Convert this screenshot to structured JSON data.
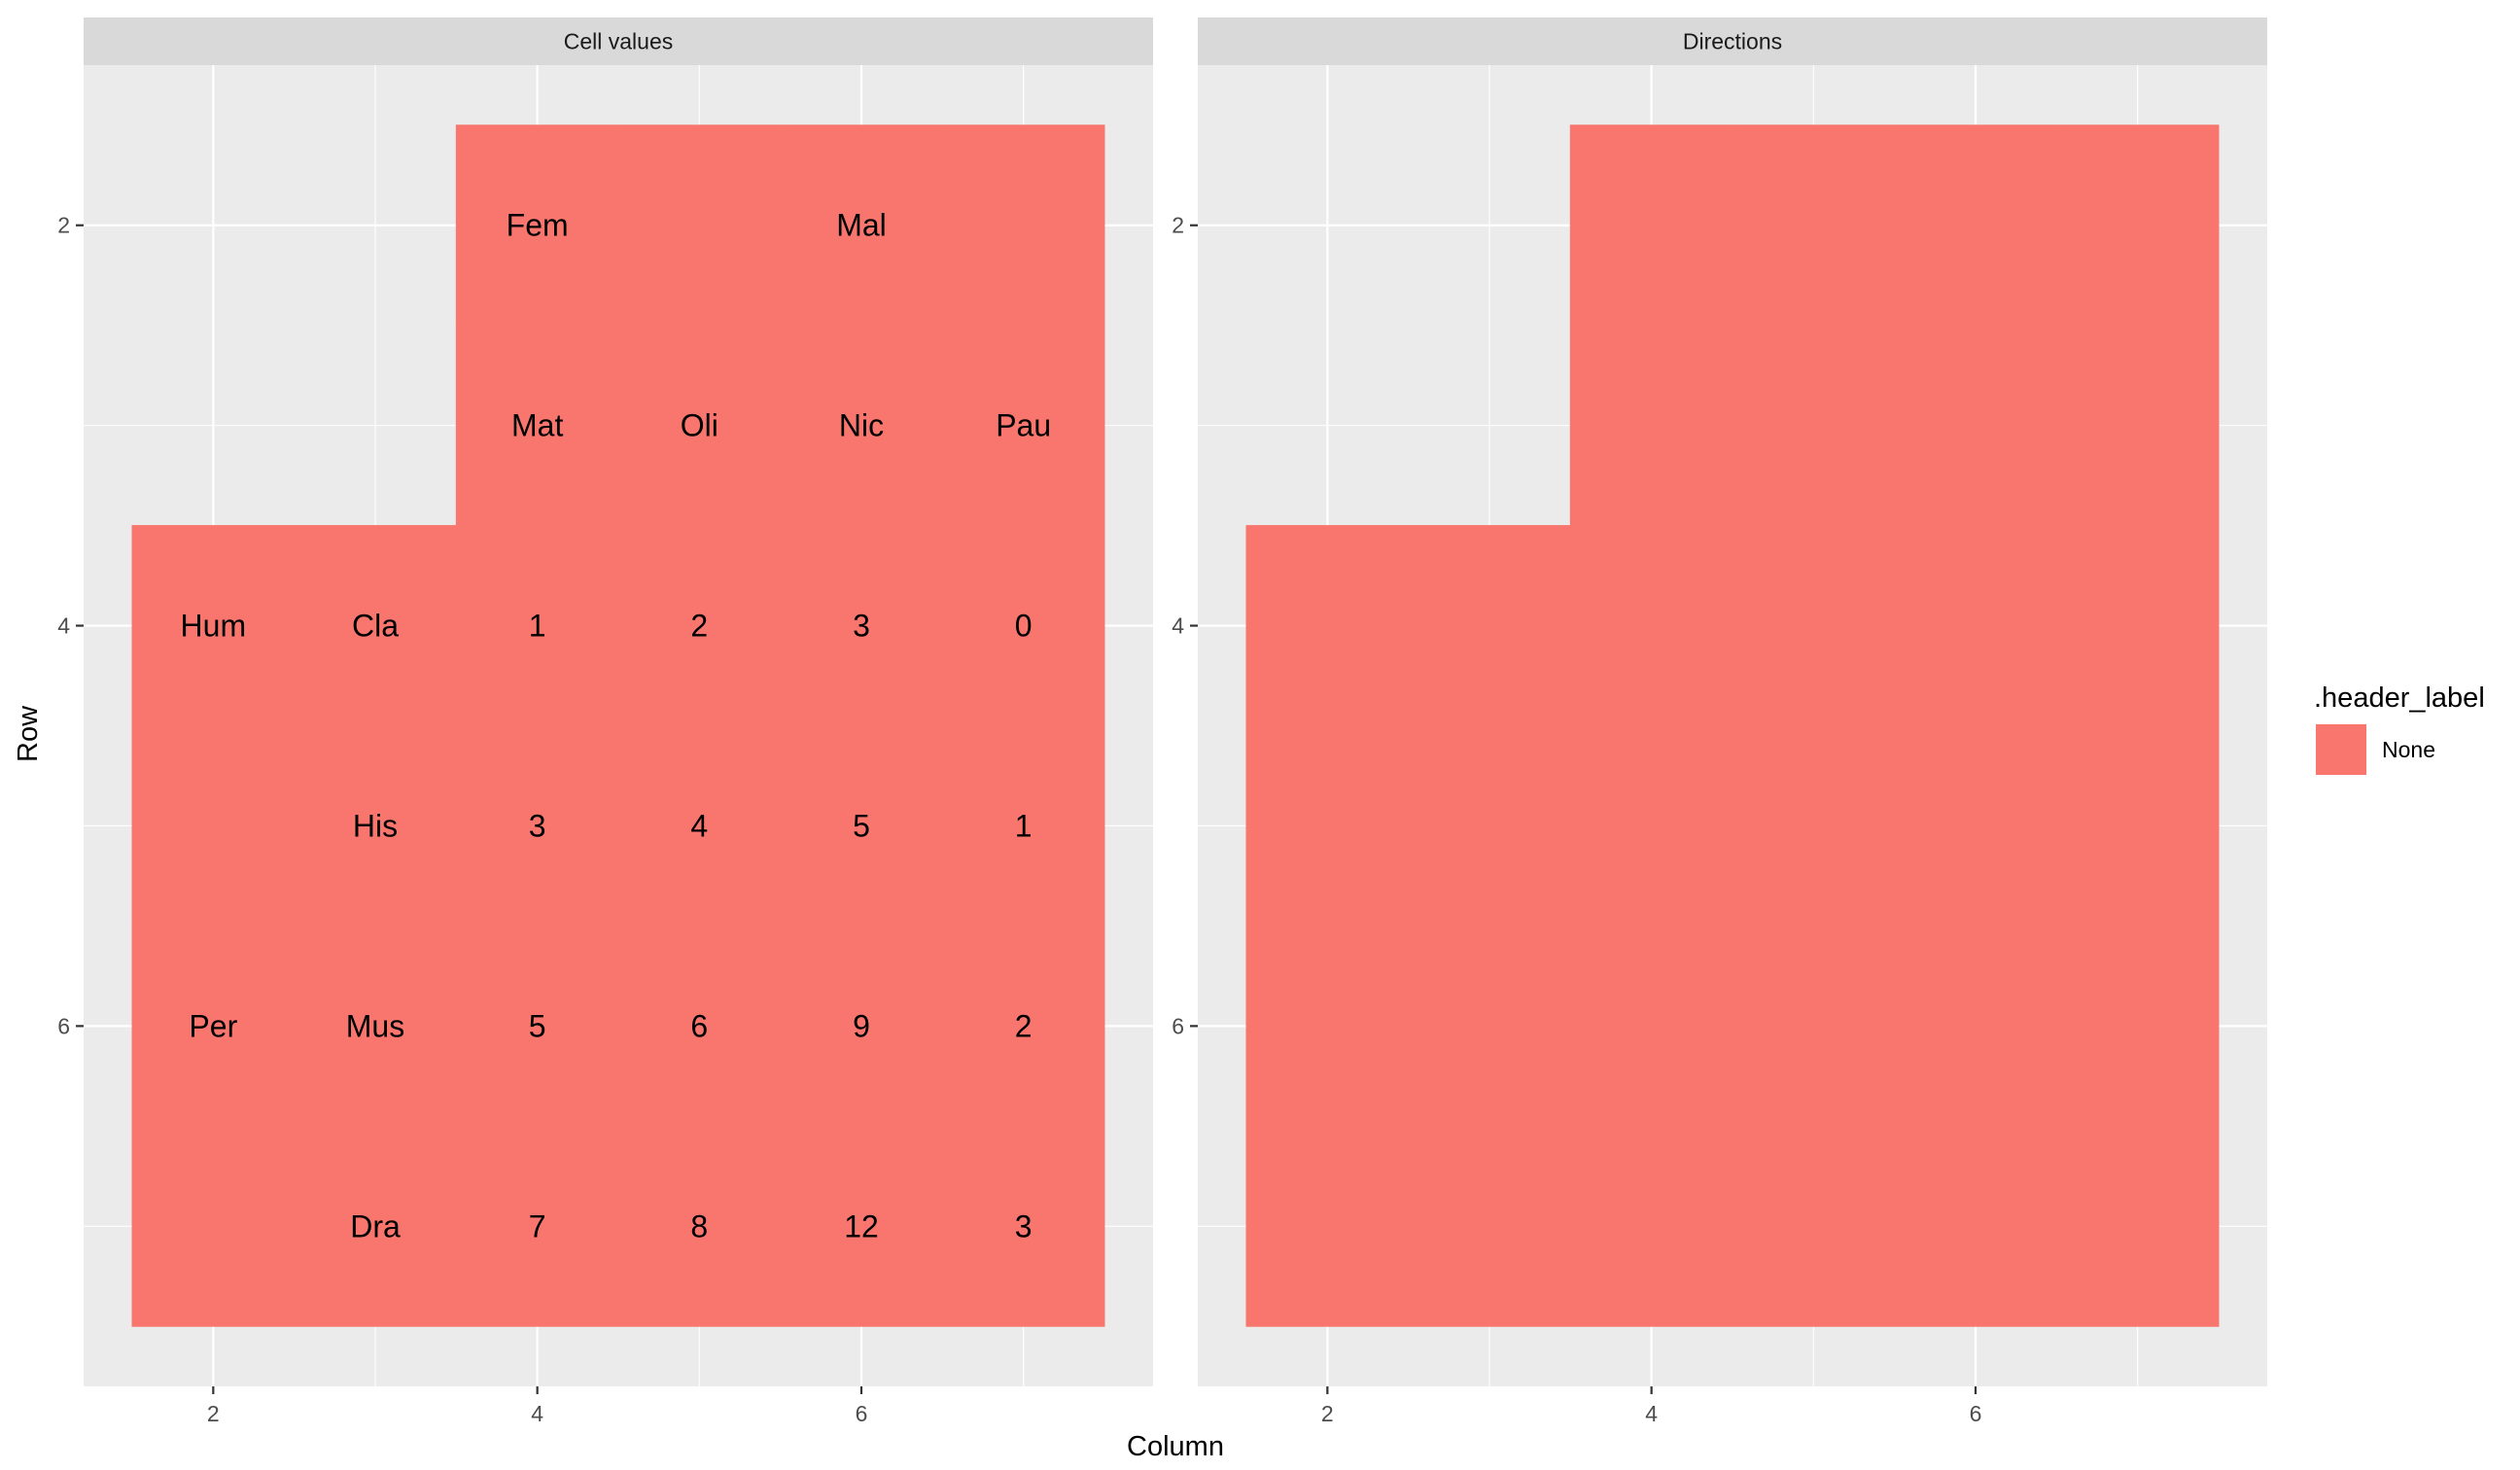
{
  "chart_data": {
    "type": "heatmap",
    "xlabel": "Column",
    "ylabel": "Row",
    "xlim": [
      1.2,
      7.8
    ],
    "ylim": [
      1.2,
      7.8
    ],
    "y_reversed": true,
    "x_ticks": [
      2,
      4,
      6
    ],
    "y_ticks": [
      2,
      4,
      6
    ],
    "grid": true,
    "fill_color": "#F8766D",
    "legend": {
      "title": ".header_label",
      "placement": "right",
      "entries": [
        {
          "label": "None",
          "color": "#F8766D"
        }
      ]
    },
    "panels": [
      {
        "title": "Cell values",
        "cells": [
          {
            "row": 2,
            "col": 4,
            "label": "Fem"
          },
          {
            "row": 2,
            "col": 5,
            "label": ""
          },
          {
            "row": 2,
            "col": 6,
            "label": "Mal"
          },
          {
            "row": 2,
            "col": 7,
            "label": ""
          },
          {
            "row": 3,
            "col": 4,
            "label": "Mat"
          },
          {
            "row": 3,
            "col": 5,
            "label": "Oli"
          },
          {
            "row": 3,
            "col": 6,
            "label": "Nic"
          },
          {
            "row": 3,
            "col": 7,
            "label": "Pau"
          },
          {
            "row": 4,
            "col": 2,
            "label": "Hum"
          },
          {
            "row": 4,
            "col": 3,
            "label": "Cla"
          },
          {
            "row": 4,
            "col": 4,
            "label": "1"
          },
          {
            "row": 4,
            "col": 5,
            "label": "2"
          },
          {
            "row": 4,
            "col": 6,
            "label": "3"
          },
          {
            "row": 4,
            "col": 7,
            "label": "0"
          },
          {
            "row": 5,
            "col": 2,
            "label": ""
          },
          {
            "row": 5,
            "col": 3,
            "label": "His"
          },
          {
            "row": 5,
            "col": 4,
            "label": "3"
          },
          {
            "row": 5,
            "col": 5,
            "label": "4"
          },
          {
            "row": 5,
            "col": 6,
            "label": "5"
          },
          {
            "row": 5,
            "col": 7,
            "label": "1"
          },
          {
            "row": 6,
            "col": 2,
            "label": "Per"
          },
          {
            "row": 6,
            "col": 3,
            "label": "Mus"
          },
          {
            "row": 6,
            "col": 4,
            "label": "5"
          },
          {
            "row": 6,
            "col": 5,
            "label": "6"
          },
          {
            "row": 6,
            "col": 6,
            "label": "9"
          },
          {
            "row": 6,
            "col": 7,
            "label": "2"
          },
          {
            "row": 7,
            "col": 2,
            "label": ""
          },
          {
            "row": 7,
            "col": 3,
            "label": "Dra"
          },
          {
            "row": 7,
            "col": 4,
            "label": "7"
          },
          {
            "row": 7,
            "col": 5,
            "label": "8"
          },
          {
            "row": 7,
            "col": 6,
            "label": "12"
          },
          {
            "row": 7,
            "col": 7,
            "label": "3"
          }
        ]
      },
      {
        "title": "Directions",
        "cells": [
          {
            "row": 2,
            "col": 4,
            "label": ""
          },
          {
            "row": 2,
            "col": 5,
            "label": ""
          },
          {
            "row": 2,
            "col": 6,
            "label": ""
          },
          {
            "row": 2,
            "col": 7,
            "label": ""
          },
          {
            "row": 3,
            "col": 4,
            "label": ""
          },
          {
            "row": 3,
            "col": 5,
            "label": ""
          },
          {
            "row": 3,
            "col": 6,
            "label": ""
          },
          {
            "row": 3,
            "col": 7,
            "label": ""
          },
          {
            "row": 4,
            "col": 2,
            "label": ""
          },
          {
            "row": 4,
            "col": 3,
            "label": ""
          },
          {
            "row": 4,
            "col": 4,
            "label": ""
          },
          {
            "row": 4,
            "col": 5,
            "label": ""
          },
          {
            "row": 4,
            "col": 6,
            "label": ""
          },
          {
            "row": 4,
            "col": 7,
            "label": ""
          },
          {
            "row": 5,
            "col": 2,
            "label": ""
          },
          {
            "row": 5,
            "col": 3,
            "label": ""
          },
          {
            "row": 5,
            "col": 4,
            "label": ""
          },
          {
            "row": 5,
            "col": 5,
            "label": ""
          },
          {
            "row": 5,
            "col": 6,
            "label": ""
          },
          {
            "row": 5,
            "col": 7,
            "label": ""
          },
          {
            "row": 6,
            "col": 2,
            "label": ""
          },
          {
            "row": 6,
            "col": 3,
            "label": ""
          },
          {
            "row": 6,
            "col": 4,
            "label": ""
          },
          {
            "row": 6,
            "col": 5,
            "label": ""
          },
          {
            "row": 6,
            "col": 6,
            "label": ""
          },
          {
            "row": 6,
            "col": 7,
            "label": ""
          },
          {
            "row": 7,
            "col": 2,
            "label": ""
          },
          {
            "row": 7,
            "col": 3,
            "label": ""
          },
          {
            "row": 7,
            "col": 4,
            "label": ""
          },
          {
            "row": 7,
            "col": 5,
            "label": ""
          },
          {
            "row": 7,
            "col": 6,
            "label": ""
          },
          {
            "row": 7,
            "col": 7,
            "label": ""
          }
        ]
      }
    ]
  }
}
